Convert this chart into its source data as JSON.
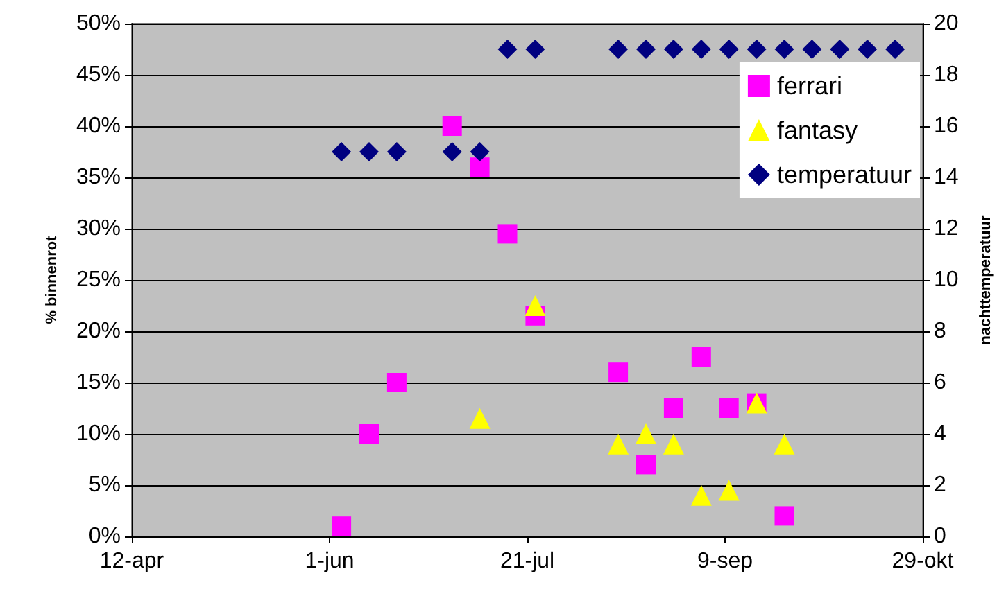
{
  "chart_data": {
    "type": "scatter",
    "ylabel": "% binnenrot",
    "y2label": "nachttemperatuur",
    "xlim": [
      "--04-12",
      "--10-29"
    ],
    "xticks": [
      {
        "value": "--04-12",
        "label": "12-apr"
      },
      {
        "value": "--06-01",
        "label": "1-jun"
      },
      {
        "value": "--07-21",
        "label": "21-jul"
      },
      {
        "value": "--09-09",
        "label": "9-sep"
      },
      {
        "value": "--10-29",
        "label": "29-okt"
      }
    ],
    "ylim": [
      0,
      50
    ],
    "yticks": [
      {
        "value": 0,
        "label": "0%"
      },
      {
        "value": 5,
        "label": "5%"
      },
      {
        "value": 10,
        "label": "10%"
      },
      {
        "value": 15,
        "label": "15%"
      },
      {
        "value": 20,
        "label": "20%"
      },
      {
        "value": 25,
        "label": "25%"
      },
      {
        "value": 30,
        "label": "30%"
      },
      {
        "value": 35,
        "label": "35%"
      },
      {
        "value": 40,
        "label": "40%"
      },
      {
        "value": 45,
        "label": "45%"
      },
      {
        "value": 50,
        "label": "50%"
      }
    ],
    "y2lim": [
      0,
      20
    ],
    "y2ticks": [
      0,
      2,
      4,
      6,
      8,
      10,
      12,
      14,
      16,
      18,
      20
    ],
    "grid": "y",
    "legend": "top right",
    "series": [
      {
        "name": "ferrari",
        "color": "#ff00ff",
        "marker": "square",
        "x": [
          "--06-04",
          "--06-11",
          "--06-18",
          "--07-02",
          "--07-09",
          "--07-16",
          "--07-23",
          "--08-13",
          "--08-20",
          "--08-27",
          "--09-03",
          "--09-10",
          "--09-17",
          "--09-24"
        ],
        "values": [
          1,
          10,
          15,
          40,
          36,
          29.5,
          21.5,
          16,
          7,
          12.5,
          17.5,
          12.5,
          13,
          2
        ]
      },
      {
        "name": "fantasy",
        "color": "#ffff00",
        "marker": "triangle",
        "x": [
          "--07-09",
          "--07-23",
          "--08-13",
          "--08-20",
          "--08-27",
          "--09-03",
          "--09-10",
          "--09-17",
          "--09-24"
        ],
        "values": [
          11.5,
          22.5,
          9,
          10,
          9,
          4,
          4.5,
          13,
          9
        ]
      },
      {
        "name": "temperatuur",
        "color": "#000080",
        "marker": "diamond",
        "axis": "y2",
        "x": [
          "--06-04",
          "--06-11",
          "--06-18",
          "--07-02",
          "--07-09",
          "--07-16",
          "--07-23",
          "--08-13",
          "--08-20",
          "--08-27",
          "--09-03",
          "--09-10",
          "--09-17",
          "--09-24",
          "--10-01",
          "--10-08",
          "--10-15",
          "--10-22"
        ],
        "values": [
          15,
          15,
          15,
          15,
          15,
          19,
          19,
          19,
          19,
          19,
          19,
          19,
          19,
          19,
          19,
          19,
          19,
          19
        ]
      }
    ]
  }
}
